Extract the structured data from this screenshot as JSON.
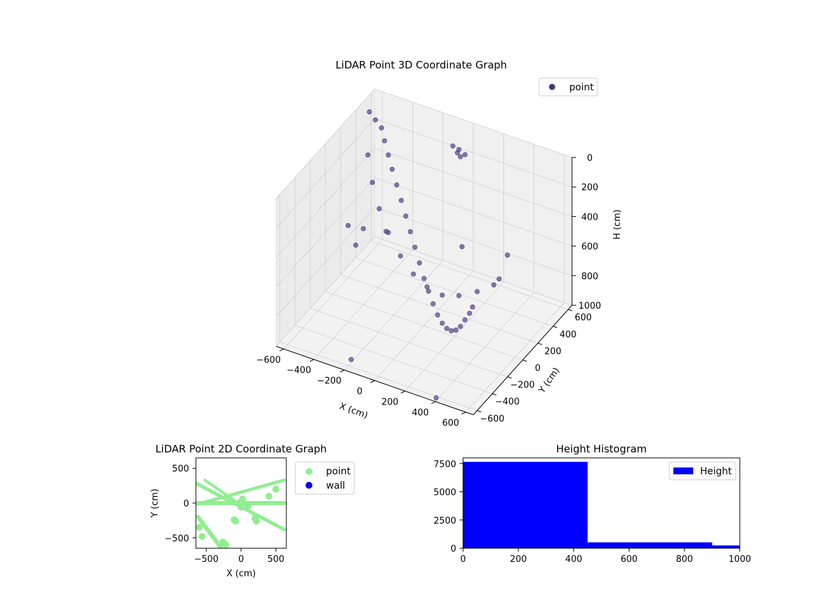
{
  "chart_data": [
    {
      "type": "scatter",
      "projection": "3d",
      "title": "LiDAR Point 3D Coordinate Graph",
      "xlabel": "X (cm)",
      "ylabel": "Y (cm)",
      "zlabel": "H (cm)",
      "xlim": [
        -650,
        650
      ],
      "ylim": [
        -650,
        650
      ],
      "zlim": [
        1000,
        0
      ],
      "xticks": [
        "−600",
        "−400",
        "−200",
        "0",
        "200",
        "400",
        "600"
      ],
      "yticks": [
        "−600",
        "−400",
        "−200",
        "0",
        "200",
        "400",
        "600"
      ],
      "zticks": [
        "0",
        "200",
        "400",
        "600",
        "800",
        "1000"
      ],
      "legend": {
        "position": "top-right",
        "entries": [
          "point"
        ]
      },
      "grid": true,
      "series": [
        {
          "name": "point",
          "color": "#46337e",
          "points": [
            [
              -640,
              560,
              100
            ],
            [
              -600,
              560,
              140
            ],
            [
              -560,
              560,
              180
            ],
            [
              -520,
              520,
              230
            ],
            [
              -470,
              470,
              280
            ],
            [
              -420,
              420,
              330
            ],
            [
              -360,
              360,
              380
            ],
            [
              -300,
              300,
              430
            ],
            [
              -240,
              240,
              480
            ],
            [
              -180,
              180,
              530
            ],
            [
              -120,
              120,
              580
            ],
            [
              -60,
              60,
              630
            ],
            [
              0,
              0,
              680
            ],
            [
              60,
              -60,
              710
            ],
            [
              120,
              -120,
              740
            ],
            [
              180,
              -180,
              760
            ],
            [
              240,
              -240,
              760
            ],
            [
              300,
              -300,
              740
            ],
            [
              360,
              -360,
              700
            ],
            [
              420,
              -420,
              640
            ],
            [
              480,
              -480,
              560
            ],
            [
              540,
              -540,
              460
            ],
            [
              600,
              -600,
              360
            ],
            [
              640,
              -640,
              280
            ],
            [
              -640,
              540,
              380
            ],
            [
              -560,
              440,
              480
            ],
            [
              -460,
              330,
              560
            ],
            [
              -340,
              210,
              610
            ],
            [
              -200,
              90,
              650
            ],
            [
              -60,
              -20,
              660
            ],
            [
              80,
              -120,
              640
            ],
            [
              220,
              -200,
              600
            ],
            [
              360,
              -260,
              520
            ],
            [
              500,
              -300,
              420
            ],
            [
              620,
              -320,
              320
            ],
            [
              660,
              -330,
              260
            ],
            [
              -80,
              540,
              120
            ],
            [
              -40,
              540,
              130
            ],
            [
              0,
              540,
              150
            ],
            [
              -60,
              560,
              170
            ],
            [
              -20,
              520,
              160
            ],
            [
              -500,
              0,
              500
            ],
            [
              -450,
              100,
              560
            ],
            [
              -400,
              -100,
              540
            ],
            [
              -350,
              200,
              600
            ],
            [
              300,
              500,
              700
            ],
            [
              -200,
              -560,
              980
            ],
            [
              400,
              -640,
              980
            ],
            [
              100,
              300,
              600
            ]
          ]
        }
      ]
    },
    {
      "type": "scatter",
      "title": "LiDAR Point 2D Coordinate Graph",
      "xlabel": "X (cm)",
      "ylabel": "Y (cm)",
      "xlim": [
        -650,
        650
      ],
      "ylim": [
        -650,
        650
      ],
      "xticks": [
        -500,
        0,
        500
      ],
      "yticks": [
        500,
        0,
        -500
      ],
      "legend": {
        "position": "outside-right",
        "entries": [
          "point",
          "wall"
        ]
      },
      "grid": false,
      "series": [
        {
          "name": "point",
          "color": "#90ee90",
          "bands": [
            {
              "from": [
                -640,
                280
              ],
              "to": [
                620,
                -380
              ],
              "thickness": 50
            },
            {
              "from": [
                -640,
                -20
              ],
              "to": [
                620,
                330
              ],
              "thickness": 45
            },
            {
              "from": [
                -640,
                0
              ],
              "to": [
                620,
                0
              ],
              "thickness": 60
            },
            {
              "from": [
                -620,
                -200
              ],
              "to": [
                -320,
                -600
              ],
              "thickness": 60
            },
            {
              "from": [
                -520,
                330
              ],
              "to": [
                -100,
                40
              ],
              "thickness": 40
            }
          ],
          "points": [
            [
              -100,
              -240
            ],
            [
              -80,
              -260
            ],
            [
              200,
              -220
            ],
            [
              220,
              -260
            ],
            [
              -220,
              -600
            ],
            [
              -260,
              -560
            ],
            [
              -300,
              -610
            ],
            [
              -560,
              -480
            ],
            [
              -600,
              -350
            ],
            [
              400,
              100
            ],
            [
              500,
              200
            ],
            [
              100,
              -40
            ],
            [
              -40,
              0
            ],
            [
              20,
              60
            ],
            [
              0,
              -60
            ]
          ]
        },
        {
          "name": "wall",
          "color": "#0000ff",
          "points": []
        }
      ]
    },
    {
      "type": "bar",
      "subtype": "histogram",
      "title": "Height Histogram",
      "xlim": [
        0,
        1000
      ],
      "ylim": [
        0,
        8000
      ],
      "xticks": [
        0,
        200,
        400,
        600,
        800,
        1000
      ],
      "yticks": [
        0,
        2500,
        5000,
        7500
      ],
      "legend": {
        "position": "top-right",
        "entries": [
          "Height"
        ]
      },
      "grid": false,
      "series": [
        {
          "name": "Height",
          "color": "#0000ff",
          "bins": [
            {
              "x0": 0,
              "x1": 450,
              "value": 7650
            },
            {
              "x0": 450,
              "x1": 900,
              "value": 520
            },
            {
              "x0": 900,
              "x1": 1000,
              "value": 250
            }
          ]
        }
      ]
    }
  ]
}
